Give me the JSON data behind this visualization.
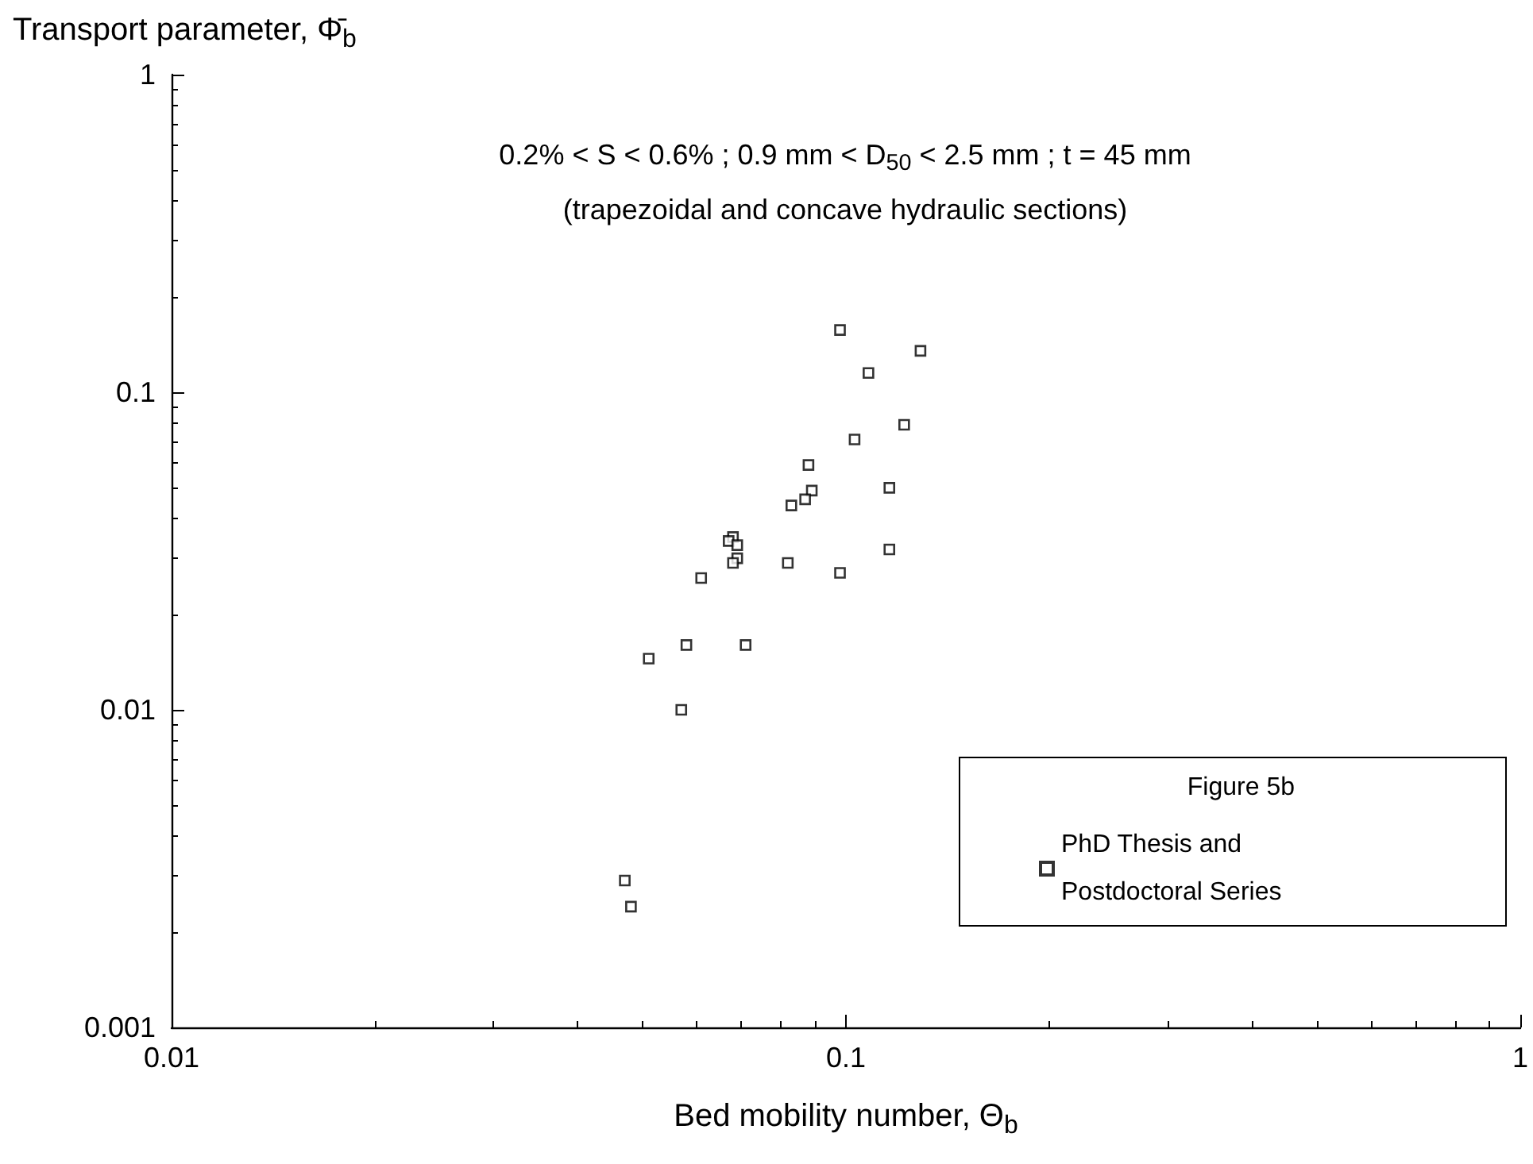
{
  "chart_data": {
    "type": "scatter",
    "xlabel": "Bed mobility number, Θ$_{b}$",
    "ylabel": "Transport parameter, Φ̄$_{b}$",
    "legend_title": "Figure 5b",
    "annotations": [
      "0.2% < S < 0.6% ; 0.9 mm < D$_{50}$ < 2.5 mm ; t = 45 mm",
      "(trapezoidal and concave hydraulic sections)"
    ],
    "series": [
      {
        "name": "PhD Thesis and Postdoctoral Series",
        "color": "#000000",
        "x": [
          0.098,
          0.129,
          0.108,
          0.122,
          0.103,
          0.088,
          0.089,
          0.116,
          0.087,
          0.083,
          0.068,
          0.067,
          0.069,
          0.069,
          0.068,
          0.082,
          0.116,
          0.098,
          0.061,
          0.058,
          0.071,
          0.051,
          0.057,
          0.047,
          0.048
        ],
        "values": [
          0.157,
          0.135,
          0.115,
          0.079,
          0.071,
          0.059,
          0.049,
          0.05,
          0.046,
          0.044,
          0.035,
          0.034,
          0.033,
          0.03,
          0.029,
          0.029,
          0.032,
          0.027,
          0.026,
          0.016,
          0.016,
          0.0145,
          0.01,
          0.0029,
          0.0024
        ]
      }
    ],
    "xlim": [
      0.01,
      1
    ],
    "ylim": [
      0.001,
      1
    ],
    "xticks": [
      0.01,
      0.1,
      1
    ],
    "yticks": [
      0.001,
      0.01,
      0.1,
      1
    ],
    "log": "xy",
    "grid": false,
    "legend": "bottom right",
    "marker": "square"
  }
}
